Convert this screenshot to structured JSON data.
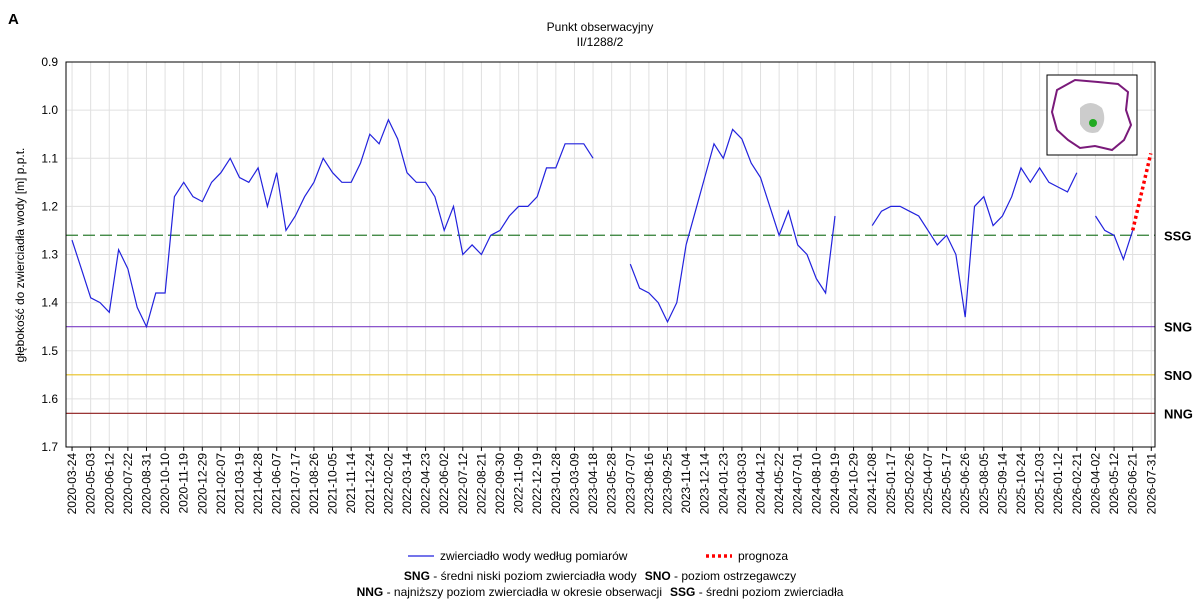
{
  "chart_data": {
    "type": "line",
    "panel": "A",
    "title": "Punkt obserwacyjny",
    "subtitle": "II/1288/2",
    "y_label": "głębokość do zwierciadła wody [m] p.p.t.",
    "y_inverted": true,
    "grid": true,
    "ylim": [
      1.7,
      0.9
    ],
    "yticks": [
      0.9,
      {
        "value": 1,
        "label": "1.0"
      },
      1.1,
      1.2,
      1.3,
      1.4,
      1.5,
      1.6,
      1.7
    ],
    "xlim": [
      "2020-03-11",
      "2026-08-08"
    ],
    "xticks": [
      "2020-03-24",
      "2020-05-03",
      "2020-06-12",
      "2020-07-22",
      "2020-08-31",
      "2020-10-10",
      "2020-11-19",
      "2020-12-29",
      "2021-02-07",
      "2021-03-19",
      "2021-04-28",
      "2021-06-07",
      "2021-07-17",
      "2021-08-26",
      "2021-10-05",
      "2021-11-14",
      "2021-12-24",
      "2022-02-02",
      "2022-03-14",
      "2022-04-23",
      "2022-06-02",
      "2022-07-12",
      "2022-08-21",
      "2022-09-30",
      "2022-11-09",
      "2022-12-19",
      "2023-01-28",
      "2023-03-09",
      "2023-04-18",
      "2023-05-28",
      "2023-07-07",
      "2023-08-16",
      "2023-09-25",
      "2023-11-04",
      "2023-12-14",
      "2024-01-23",
      "2024-03-03",
      "2024-04-12",
      "2024-05-22",
      "2024-07-01",
      "2024-08-10",
      "2024-09-19",
      "2024-10-29",
      "2024-12-08",
      "2025-01-17",
      "2025-02-26",
      "2025-04-07",
      "2025-05-17",
      "2025-06-26",
      "2025-08-05",
      "2025-09-14",
      "2025-10-24",
      "2025-12-03",
      "2026-01-12",
      "2026-02-21",
      "2026-04-02",
      "2026-05-12",
      "2026-06-21",
      "2026-07-31"
    ],
    "series": [
      {
        "name": "zwierciadło wody według pomiarów",
        "color": "#2222dd",
        "style": "solid",
        "x": [
          "2020-03-24",
          "2020-04-13",
          "2020-05-03",
          "2020-05-23",
          "2020-06-12",
          "2020-07-02",
          "2020-07-22",
          "2020-08-11",
          "2020-08-31",
          "2020-09-20",
          "2020-10-10",
          "2020-10-30",
          "2020-11-19",
          "2020-12-09",
          "2020-12-29",
          "2021-01-18",
          "2021-02-07",
          "2021-02-27",
          "2021-03-19",
          "2021-04-08",
          "2021-04-28",
          "2021-05-18",
          "2021-06-07",
          "2021-06-27",
          "2021-07-17",
          "2021-08-06",
          "2021-08-26",
          "2021-09-15",
          "2021-10-05",
          "2021-10-25",
          "2021-11-14",
          "2021-12-04",
          "2021-12-24",
          "2022-01-13",
          "2022-02-02",
          "2022-02-22",
          "2022-03-14",
          "2022-04-03",
          "2022-04-23",
          "2022-05-13",
          "2022-06-02",
          "2022-06-22",
          "2022-07-12",
          "2022-08-01",
          "2022-08-21",
          "2022-09-10",
          "2022-09-30",
          "2022-10-20",
          "2022-11-09",
          "2022-11-29",
          "2022-12-19",
          "2023-01-08",
          "2023-01-28",
          "2023-02-17",
          "2023-03-09",
          "2023-03-29",
          "2023-04-18",
          "2023-05-08",
          "2023-05-28",
          "2023-06-17",
          "2023-07-07",
          "2023-07-27",
          "2023-08-16",
          "2023-09-05",
          "2023-09-25",
          "2023-10-15",
          "2023-11-04",
          "2023-11-24",
          "2023-12-14",
          "2024-01-03",
          "2024-01-23",
          "2024-02-12",
          "2024-03-03",
          "2024-03-23",
          "2024-04-12",
          "2024-05-02",
          "2024-05-22",
          "2024-06-11",
          "2024-07-01",
          "2024-07-21",
          "2024-08-10",
          "2024-08-30",
          "2024-09-19",
          "2024-10-09",
          "2024-10-29",
          "2024-11-18",
          "2024-12-08",
          "2024-12-28",
          "2025-01-17",
          "2025-02-06",
          "2025-02-26",
          "2025-03-18",
          "2025-04-07",
          "2025-04-27",
          "2025-05-17",
          "2025-06-06",
          "2025-06-26",
          "2025-07-16",
          "2025-08-05",
          "2025-08-25",
          "2025-09-14",
          "2025-10-04",
          "2025-10-24",
          "2025-11-13",
          "2025-12-03",
          "2025-12-23",
          "2026-01-12",
          "2026-02-01",
          "2026-02-21",
          "2026-03-13",
          "2026-04-02",
          "2026-04-22",
          "2026-05-12",
          "2026-06-01",
          "2026-06-21"
        ],
        "values": [
          1.27,
          1.33,
          1.39,
          1.4,
          1.42,
          1.29,
          1.33,
          1.41,
          1.45,
          1.38,
          1.38,
          1.18,
          1.15,
          1.18,
          1.19,
          1.15,
          1.13,
          1.1,
          1.14,
          1.15,
          1.12,
          1.2,
          1.13,
          1.25,
          1.22,
          1.18,
          1.15,
          1.1,
          1.13,
          1.15,
          1.15,
          1.11,
          1.05,
          1.07,
          1.02,
          1.06,
          1.13,
          1.15,
          1.15,
          1.18,
          1.25,
          1.2,
          1.3,
          1.28,
          1.3,
          1.26,
          1.25,
          1.22,
          1.2,
          1.2,
          1.18,
          1.12,
          1.12,
          1.07,
          1.07,
          1.07,
          1.1,
          null,
          null,
          null,
          1.32,
          1.37,
          1.38,
          1.4,
          1.44,
          1.4,
          1.28,
          1.21,
          1.14,
          1.07,
          1.1,
          1.04,
          1.06,
          1.11,
          1.14,
          1.2,
          1.26,
          1.21,
          1.28,
          1.3,
          1.35,
          1.38,
          1.22,
          null,
          null,
          null,
          1.24,
          1.21,
          1.2,
          1.2,
          1.21,
          1.22,
          1.25,
          1.28,
          1.26,
          1.3,
          1.43,
          1.2,
          1.18,
          1.24,
          1.22,
          1.18,
          1.12,
          1.15,
          1.12,
          1.15,
          1.16,
          1.17,
          1.13,
          null,
          1.22,
          1.25,
          1.26,
          1.31,
          1.25
        ]
      },
      {
        "name": "prognoza",
        "color": "#ff0000",
        "style": "dotted",
        "x": [
          "2026-06-21",
          "2026-07-30"
        ],
        "values": [
          1.25,
          1.09
        ]
      }
    ],
    "reference_lines": [
      {
        "label": "SSG",
        "value": 1.26,
        "color": "#2e7d32",
        "style": "dashed"
      },
      {
        "label": "SNG",
        "value": 1.45,
        "color": "#7b3fc4",
        "style": "solid"
      },
      {
        "label": "SNO",
        "value": 1.55,
        "color": "#e8c020",
        "style": "solid"
      },
      {
        "label": "NNG",
        "value": 1.63,
        "color": "#8b1a1a",
        "style": "solid"
      }
    ],
    "notes": [
      [
        {
          "abbr": "SNG",
          "text": " - średni niski poziom zwierciadła wody"
        },
        {
          "abbr": "SNO",
          "text": " - poziom ostrzegawczy"
        }
      ],
      [
        {
          "abbr": "NNG",
          "text": " - najniższy poziom zwierciadła w okresie obserwacji"
        },
        {
          "abbr": "SSG",
          "text": " - średni poziom zwierciadła"
        }
      ]
    ]
  }
}
